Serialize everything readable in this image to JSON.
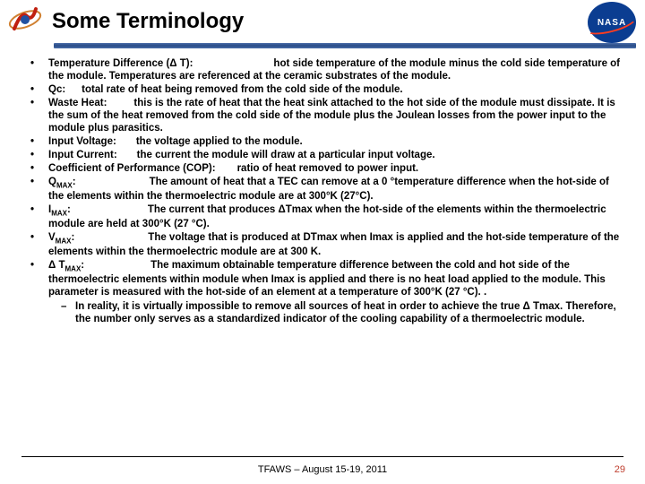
{
  "header": {
    "title": "Some Terminology"
  },
  "bullets": [
    {
      "term": "Temperature Difference (Δ T):",
      "desc": "hot side temperature of the module minus the cold side temperature of the module. Temperatures are referenced at the ceramic substrates of the module.",
      "gap": 90
    },
    {
      "term": "Qc:",
      "desc": "total rate of heat being removed from the cold side of the module.",
      "gap": 18
    },
    {
      "term": "Waste Heat:",
      "desc": "this is the rate of heat that the heat sink attached to the hot side of the module must dissipate. It is the sum of the heat removed from the cold side of the module plus the Joulean losses from the power input to the module plus parasitics.",
      "gap": 30
    },
    {
      "term": "Input Voltage:",
      "desc": "the voltage applied to the module.",
      "gap": 22
    },
    {
      "term": "Input Current:",
      "desc": "the current the module will draw at a particular input voltage.",
      "gap": 22
    },
    {
      "term": "Coefficient of Performance (COP):",
      "desc": "ratio of heat removed to power input.",
      "gap": 24
    },
    {
      "term": "Q",
      "sub": "MAX",
      "post": ":",
      "desc": "The amount of heat that a TEC can remove at a 0 °temperature difference when the hot‐side of the elements within the thermoelectric module are at 300°K (27°C).",
      "gap": 82
    },
    {
      "term": "I",
      "sub": "MAX",
      "post": ":",
      "desc": "The current that produces ΔTmax when the hot‐side of the elements within the thermoelectric module are held at 300°K (27 °C).",
      "gap": 86
    },
    {
      "term": "V",
      "sub": "MAX",
      "post": ":",
      "desc": "The voltage that is produced at DTmax when Imax is applied and the hot‐side temperature of the elements within the thermoelectric module are at 300 K.",
      "gap": 82
    },
    {
      "term": "Δ T",
      "sub": "MAX",
      "post": ":",
      "desc": "The maximum obtainable temperature difference between the cold and hot side of the thermoelectric elements within module when Imax is applied and there is no heat load applied to the module. This parameter is measured with the hot‐side of an element at a temperature of 300°K (27 °C). .",
      "gap": 74,
      "sub_items": [
        "In reality, it is virtually impossible to remove all sources of heat in order to achieve the true Δ Tmax. Therefore, the number only serves as a standardized indicator of the cooling capability of a thermoelectric module."
      ]
    }
  ],
  "footer": {
    "text": "TFAWS – August 15-19, 2011",
    "page": "29"
  },
  "colors": {
    "bar_gradient_top": "#4a6ea9",
    "bar_gradient_mid": "#2a4c87",
    "nasa_blue": "#0b3d91",
    "nasa_red": "#fc3d21",
    "page_num": "#c04030"
  }
}
